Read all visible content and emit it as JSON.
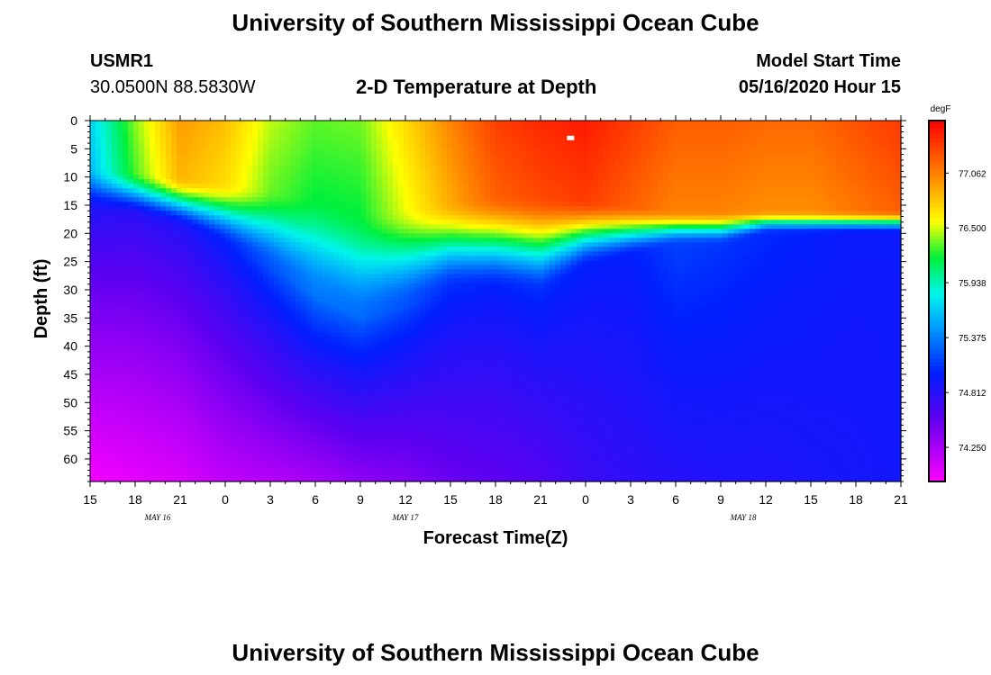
{
  "page": {
    "title_top": "University of Southern Mississippi Ocean Cube",
    "title_bottom": "University of Southern Mississippi Ocean Cube"
  },
  "header": {
    "station_id": "USMR1",
    "coordinates": "30.0500N 88.5830W",
    "plot_title": "2-D Temperature at Depth",
    "model_start_label": "Model Start Time",
    "model_start_value": "05/16/2020 Hour 15"
  },
  "chart_data": {
    "type": "heatmap",
    "title": "2-D Temperature at Depth",
    "xlabel": "Forecast Time(Z)",
    "ylabel": "Depth (ft)",
    "x_ticks": [
      "15",
      "18",
      "21",
      "0",
      "3",
      "6",
      "9",
      "12",
      "15",
      "18",
      "21",
      "0",
      "3",
      "6",
      "9",
      "12",
      "15",
      "18",
      "21"
    ],
    "x_hours": [
      0,
      3,
      6,
      9,
      12,
      15,
      18,
      21,
      24,
      27,
      30,
      33,
      36,
      39,
      42,
      45,
      48,
      51,
      54
    ],
    "x_range_hours": [
      0,
      54
    ],
    "date_labels": [
      {
        "text": "MAY 16",
        "hour": 4.5
      },
      {
        "text": "MAY 17",
        "hour": 21
      },
      {
        "text": "MAY 18",
        "hour": 43.5
      }
    ],
    "y_ticks": [
      0,
      5,
      10,
      15,
      20,
      25,
      30,
      35,
      40,
      45,
      50,
      55,
      60
    ],
    "y_range_ft": [
      0,
      64
    ],
    "colorbar": {
      "unit": "degF",
      "labels": [
        "77.062",
        "76.500",
        "75.938",
        "75.375",
        "74.812",
        "74.250"
      ],
      "label_values": [
        77.062,
        76.5,
        75.938,
        75.375,
        74.812,
        74.25
      ],
      "range": [
        73.9,
        77.6
      ]
    },
    "profile": {
      "description": "temperature (degF) vs forecast hour: surface-layer value, thermocline top/bottom depth (ft), value just below thermocline, value at 64 ft",
      "hours": [
        0,
        3,
        6,
        9,
        12,
        15,
        18,
        21,
        24,
        27,
        30,
        33,
        36,
        39,
        42,
        45,
        48,
        51,
        54
      ],
      "surface_temp": [
        75.6,
        76.3,
        76.85,
        76.7,
        76.35,
        76.2,
        76.2,
        76.55,
        76.9,
        77.2,
        77.3,
        77.35,
        77.2,
        77.05,
        77.05,
        77.0,
        77.0,
        77.1,
        77.2
      ],
      "mixed_depth": [
        8,
        9,
        10,
        11,
        12,
        13,
        16,
        15,
        14,
        13,
        13,
        14,
        15,
        16,
        16,
        16,
        16,
        16,
        16
      ],
      "thermo_bottom": [
        16,
        17,
        19,
        22,
        26,
        31,
        35,
        33,
        30,
        30,
        31,
        26,
        24,
        22,
        22,
        20,
        20,
        20,
        20
      ],
      "below_temp": [
        74.85,
        74.8,
        74.85,
        75.0,
        75.2,
        75.35,
        75.3,
        75.2,
        75.05,
        75.0,
        75.05,
        75.0,
        75.0,
        75.15,
        75.1,
        75.05,
        75.0,
        74.95,
        74.95
      ],
      "bottom_temp": [
        73.95,
        74.0,
        74.05,
        74.15,
        74.2,
        74.25,
        74.35,
        74.4,
        74.5,
        74.55,
        74.6,
        74.72,
        74.78,
        74.82,
        74.85,
        74.85,
        74.88,
        74.9,
        74.92
      ]
    },
    "max_marker": {
      "hour": 32,
      "depth_ft": 3
    }
  }
}
